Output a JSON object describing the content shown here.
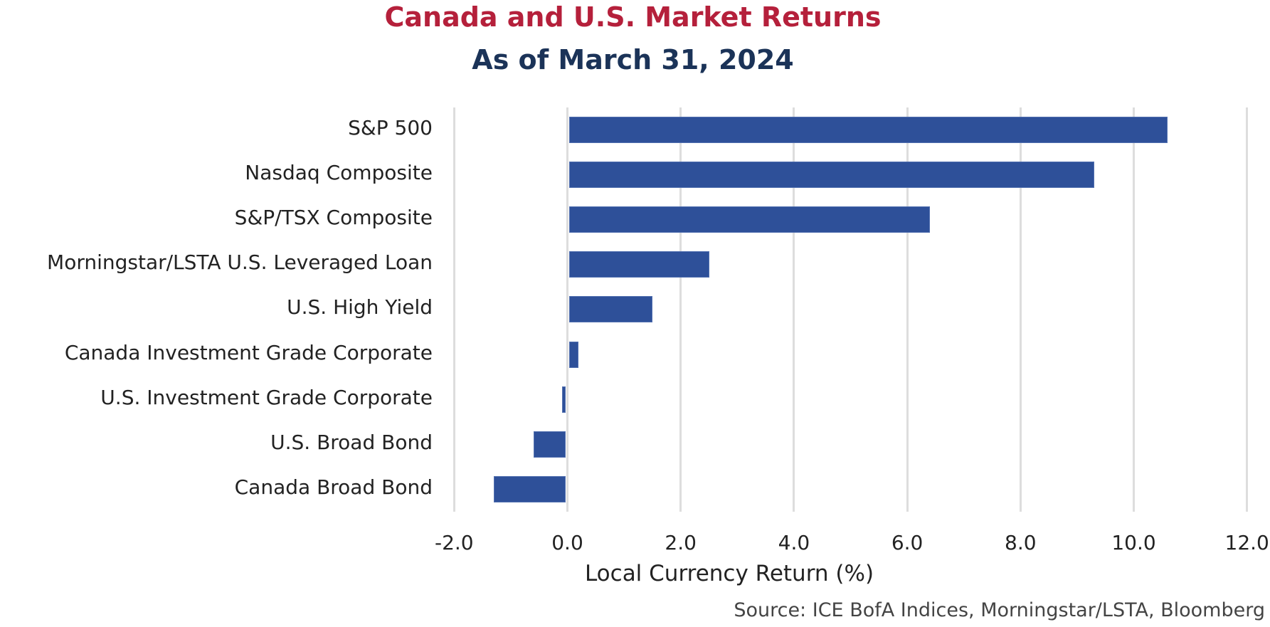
{
  "header": {
    "title": "Canada and U.S. Market Returns",
    "subtitle": "As of March 31, 2024"
  },
  "colors": {
    "title": "#B5203B",
    "subtitle": "#1B3358",
    "bar": "#2E5099",
    "gridline": "#DDDDDD",
    "text": "#222222"
  },
  "axis": {
    "xlabel": "Local Currency Return (%)",
    "ticks": [
      "-2.0",
      "0.0",
      "2.0",
      "4.0",
      "6.0",
      "8.0",
      "10.0",
      "12.0"
    ]
  },
  "footer": {
    "source": "Source: ICE BofA Indices, Morningstar/LSTA, Bloomberg"
  },
  "chart_data": {
    "type": "bar",
    "orientation": "horizontal",
    "title": "Canada and U.S. Market Returns",
    "subtitle": "As of March 31, 2024",
    "categories": [
      "S&P 500",
      "Nasdaq Composite",
      "S&P/TSX Composite",
      "Morningstar/LSTA U.S. Leveraged Loan",
      "U.S. High Yield",
      "Canada Investment Grade Corporate",
      "U.S. Investment Grade Corporate",
      "U.S. Broad Bond",
      "Canada Broad Bond"
    ],
    "values": [
      10.6,
      9.3,
      6.4,
      2.5,
      1.5,
      0.2,
      -0.1,
      -0.6,
      -1.3
    ],
    "xlabel": "Local Currency Return (%)",
    "ylabel": "",
    "xlim": [
      -2.0,
      12.0
    ],
    "xticks": [
      -2.0,
      0.0,
      2.0,
      4.0,
      6.0,
      8.0,
      10.0,
      12.0
    ],
    "grid": "vertical",
    "legend": "none",
    "source": "Source: ICE BofA Indices, Morningstar/LSTA, Bloomberg"
  }
}
